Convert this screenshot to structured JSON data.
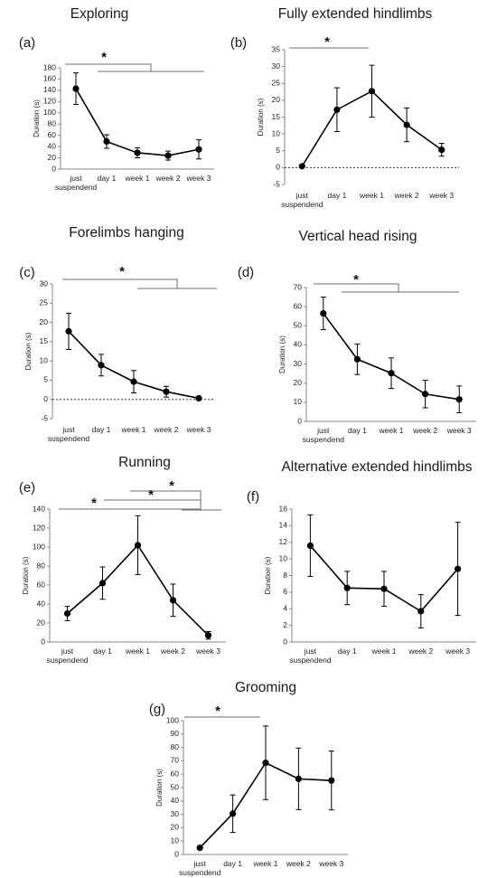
{
  "figure": {
    "y_axis_label": "Duration (s)",
    "star_symbol": "*"
  },
  "chart_data": [
    {
      "type": "line",
      "panel": "(a)",
      "title": "Exploring",
      "categories": [
        "just suspendend",
        "day 1",
        "week 1",
        "week 2",
        "week 3"
      ],
      "values": [
        143,
        49,
        29,
        24,
        35
      ],
      "errors": [
        28,
        12,
        9,
        8,
        17
      ],
      "ylim": [
        0,
        180
      ],
      "yticks": [
        0,
        20,
        40,
        60,
        80,
        100,
        120,
        140,
        160,
        180
      ],
      "zero_line": false
    },
    {
      "type": "line",
      "panel": "(b)",
      "title": "Fully extended hindlimbs",
      "categories": [
        "just suspendend",
        "day 1",
        "week 1",
        "week 2",
        "week 3"
      ],
      "values": [
        0.4,
        17.2,
        22.7,
        12.7,
        5.3
      ],
      "errors": [
        0.2,
        6.5,
        7.7,
        5,
        1.9
      ],
      "ylim": [
        -5,
        35
      ],
      "yticks": [
        -5,
        0,
        5,
        10,
        15,
        20,
        25,
        30,
        35
      ],
      "zero_line": true
    },
    {
      "type": "line",
      "panel": "(c)",
      "title": "Forelimbs hanging",
      "categories": [
        "just suspendend",
        "day 1",
        "week 1",
        "week 2",
        "week 3"
      ],
      "values": [
        17.7,
        8.9,
        4.6,
        2,
        0.3
      ],
      "errors": [
        4.7,
        2.8,
        2.9,
        1.4,
        0.2
      ],
      "ylim": [
        -5,
        30
      ],
      "yticks": [
        -5,
        0,
        5,
        10,
        15,
        20,
        25,
        30
      ],
      "zero_line": true
    },
    {
      "type": "line",
      "panel": "(d)",
      "title": "Vertical head rising",
      "categories": [
        "just suspendend",
        "day 1",
        "week 1",
        "week 2",
        "week 3"
      ],
      "values": [
        56.5,
        32.5,
        25.2,
        14.3,
        11.5
      ],
      "errors": [
        8.5,
        8,
        8,
        7.2,
        7
      ],
      "ylim": [
        0,
        70
      ],
      "yticks": [
        0,
        10,
        20,
        30,
        40,
        50,
        60,
        70
      ],
      "zero_line": false
    },
    {
      "type": "line",
      "panel": "(e)",
      "title": "Running",
      "categories": [
        "just suspendend",
        "day 1",
        "week 1",
        "week 2",
        "week 3"
      ],
      "values": [
        30,
        62,
        102,
        44,
        7
      ],
      "errors": [
        7.5,
        17,
        31,
        17,
        4
      ],
      "ylim": [
        0,
        140
      ],
      "yticks": [
        0,
        20,
        40,
        60,
        80,
        100,
        120,
        140
      ],
      "zero_line": false
    },
    {
      "type": "line",
      "panel": "(f)",
      "title": "Alternative extended hindlimbs",
      "categories": [
        "just suspendend",
        "day 1",
        "week 1",
        "week 2",
        "week 3"
      ],
      "values": [
        11.6,
        6.5,
        6.4,
        3.7,
        8.8
      ],
      "errors": [
        3.7,
        2,
        2.1,
        2,
        5.6
      ],
      "ylim": [
        0,
        16
      ],
      "yticks": [
        0,
        2,
        4,
        6,
        8,
        10,
        12,
        14,
        16
      ],
      "zero_line": false
    },
    {
      "type": "line",
      "panel": "(g)",
      "title": "Grooming",
      "categories": [
        "just suspendend",
        "day 1",
        "week 1",
        "week 2",
        "week 3"
      ],
      "values": [
        5,
        30.5,
        68.5,
        56.5,
        55.3
      ],
      "errors": [
        0.5,
        14,
        27.5,
        23,
        22
      ],
      "ylim": [
        0,
        100
      ],
      "yticks": [
        0,
        10,
        20,
        30,
        40,
        50,
        60,
        70,
        80,
        90,
        100
      ],
      "zero_line": false
    }
  ]
}
